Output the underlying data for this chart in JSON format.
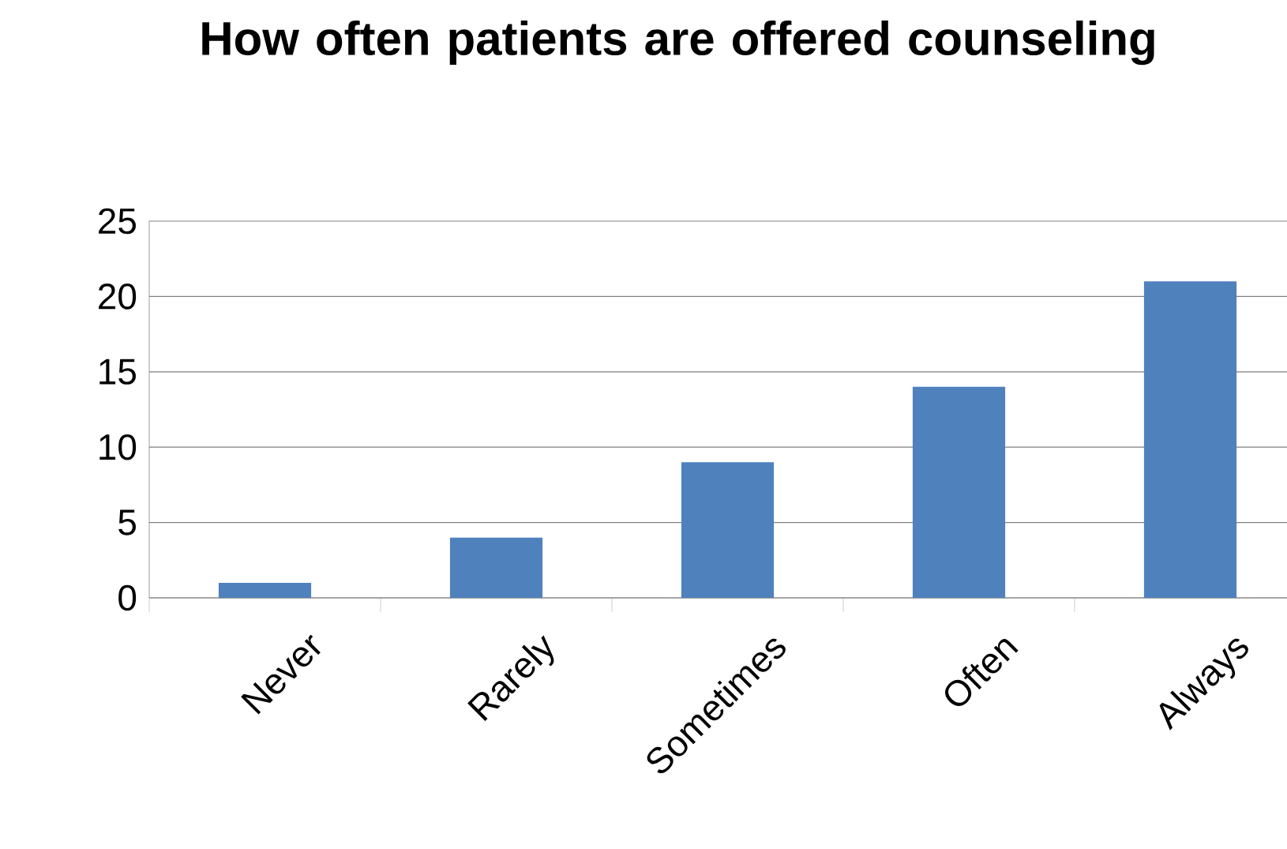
{
  "chart_data": {
    "type": "bar",
    "title": "How often patients are offered counseling",
    "categories": [
      "Never",
      "Rarely",
      "Sometimes",
      "Often",
      "Always"
    ],
    "values": [
      1,
      4,
      9,
      14,
      21
    ],
    "color": "#4f81bd",
    "ylim": [
      0,
      25
    ],
    "yticks": [
      0,
      5,
      10,
      15,
      20,
      25
    ],
    "grid": "y"
  }
}
